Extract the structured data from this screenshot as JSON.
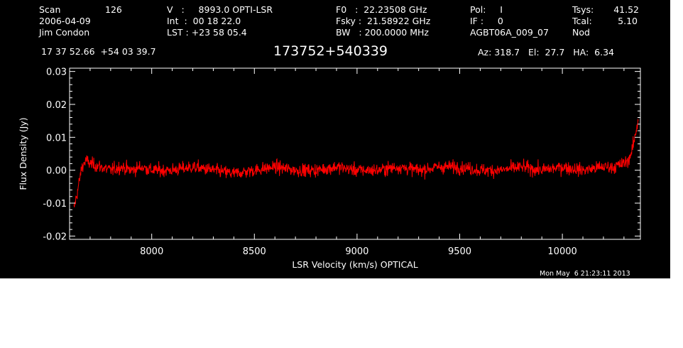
{
  "header": {
    "scan_label": "Scan",
    "scan_number": "126",
    "date": "2006-04-09",
    "observer": "Jim Condon",
    "v_line": "V   :     8993.0 OPTI-LSR",
    "int_line": "Int  :  00 18 22.0",
    "lst_line": "LST : +23 58 05.4",
    "f0_line": "F0   :  22.23508 GHz",
    "fsky_line": "Fsky :  21.58922 GHz",
    "bw_line": "BW   : 200.0000 MHz",
    "pol_line": "Pol:     I",
    "if_line": "IF :     0",
    "project": "AGBT06A_009_07",
    "tsys_label": "Tsys:",
    "tsys_value": "41.52",
    "tcal_label": "Tcal:",
    "tcal_value": "5.10",
    "mode": "Nod",
    "coords": "17 37 52.66  +54 03 39.7",
    "source": "173752+540339",
    "az_el_ha": "Az: 318.7   El:  27.7   HA:  6.34"
  },
  "timestamp": "Mon May  6 21:23:11 2013",
  "colors": {
    "background": "#000000",
    "axes": "#ffffff",
    "trace": "#ff0000"
  },
  "chart_data": {
    "type": "line",
    "title": "173752+540339",
    "xlabel": "LSR Velocity (km/s) OPTICAL",
    "ylabel": "Flux Density (Jy)",
    "xlim": [
      7600,
      10380
    ],
    "ylim": [
      -0.021,
      0.031
    ],
    "x_ticks": [
      8000,
      8500,
      9000,
      9500,
      10000
    ],
    "x_tick_labels": [
      "8000",
      "8500",
      "9000",
      "9500",
      "10000"
    ],
    "y_ticks": [
      -0.02,
      -0.01,
      0.0,
      0.01,
      0.02,
      0.03
    ],
    "y_tick_labels": [
      "-0.02",
      "-0.01",
      "0.00",
      "0.01",
      "0.02",
      "0.03"
    ],
    "grid": false,
    "series": [
      {
        "x": [
          7620,
          7640,
          7660,
          7680,
          7700,
          7750,
          7800,
          7850,
          7900,
          7950,
          8000,
          8100,
          8200,
          8300,
          8400,
          8500,
          8600,
          8700,
          8800,
          8900,
          9000,
          9100,
          9200,
          9300,
          9400,
          9500,
          9600,
          9700,
          9800,
          9900,
          10000,
          10100,
          10200,
          10250,
          10300,
          10320,
          10340,
          10360,
          10370
        ],
        "values": [
          -0.012,
          -0.006,
          0.001,
          0.003,
          0.002,
          0.001,
          0.0,
          0.001,
          0.0,
          0.001,
          0.0,
          0.0,
          0.001,
          0.0,
          -0.001,
          0.0,
          0.001,
          0.0,
          0.0,
          0.001,
          0.0,
          0.0,
          0.001,
          0.0,
          0.001,
          0.001,
          0.0,
          0.0,
          0.001,
          0.0,
          0.001,
          0.0,
          0.001,
          0.001,
          0.002,
          0.003,
          0.006,
          0.012,
          0.016
        ]
      }
    ]
  }
}
